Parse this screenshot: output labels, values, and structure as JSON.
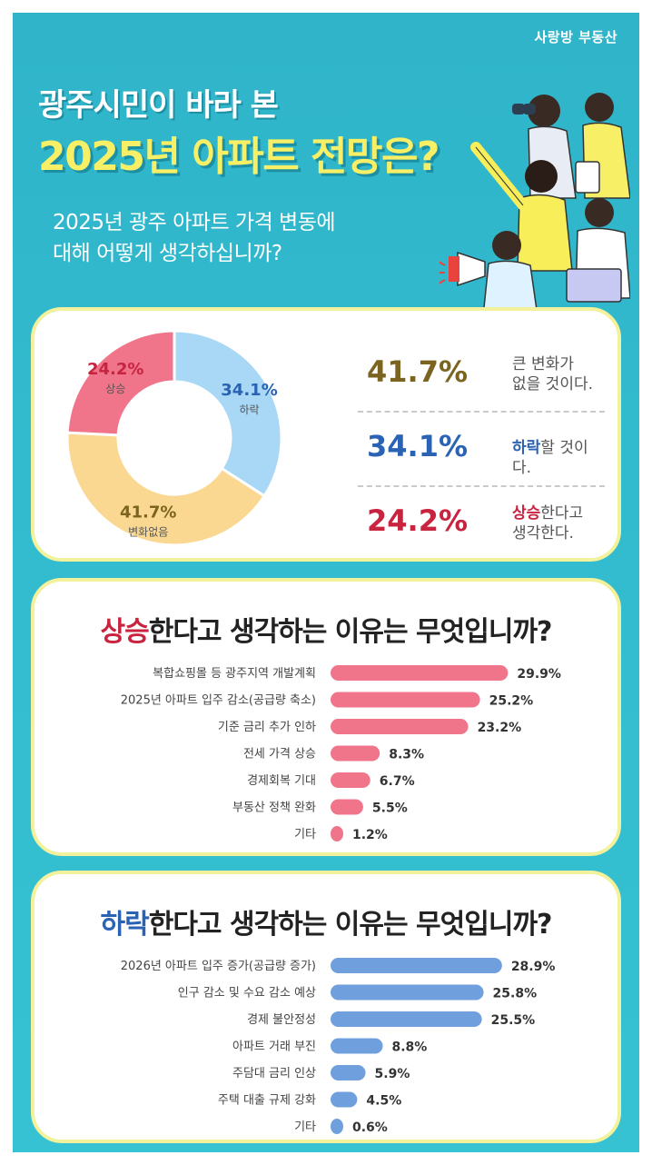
{
  "brand": "사랑방 부동산",
  "header": {
    "line1": "광주시민이 바라 본",
    "line2_yellow": "2025년 아파트 전망은?",
    "question_line1": "2025년 광주 아파트 가격 변동에",
    "question_line2": "대해 어떻게 생각하십니까?"
  },
  "colors": {
    "background": "#33bccf",
    "rise": "#f0758a",
    "fall": "#6fa0dd",
    "nochange": "#fbd891",
    "fall_slice": "#a9d8f7",
    "rise_text": "#c8233f",
    "fall_text": "#2a62b4",
    "nochange_text": "#7b6420"
  },
  "donut": {
    "slices": [
      {
        "name": "하락",
        "value": 34.1,
        "label": "34.1%",
        "color": "#a9d8f7",
        "text_color": "#2a62b4"
      },
      {
        "name": "변화없음",
        "value": 41.7,
        "label": "41.7%",
        "color": "#fbd891",
        "text_color": "#7b6420"
      },
      {
        "name": "상승",
        "value": 24.2,
        "label": "24.2%",
        "color": "#f0758a",
        "text_color": "#c8233f"
      }
    ]
  },
  "legend": [
    {
      "pct": "41.7%",
      "strong": "",
      "rest": "큰 변화가",
      "rest2": "없을 것이다."
    },
    {
      "pct": "34.1%",
      "strong": "하락",
      "rest": "할 것이다.",
      "rest2": ""
    },
    {
      "pct": "24.2%",
      "strong": "상승",
      "rest": "한다고",
      "rest2": "생각한다."
    }
  ],
  "rise_section": {
    "title_strong": "상승",
    "title_rest": "한다고 생각하는 이유는 무엇입니까?"
  },
  "fall_section": {
    "title_strong": "하락",
    "title_rest": "한다고 생각하는 이유는 무엇입니까?"
  },
  "chart_data": [
    {
      "type": "pie",
      "categories": [
        "하락",
        "변화없음",
        "상승"
      ],
      "values": [
        34.1,
        41.7,
        24.2
      ],
      "title": "2025년 광주 아파트 가격 변동에 대해 어떻게 생각하십니까?"
    },
    {
      "type": "bar",
      "orientation": "horizontal",
      "title": "상승한다고 생각하는 이유는 무엇입니까?",
      "categories": [
        "복합쇼핑몰 등 광주지역 개발계획",
        "2025년 아파트 입주 감소(공급량 축소)",
        "기준 금리 추가 인하",
        "전세 가격 상승",
        "경제회복 기대",
        "부동산 정책 완화",
        "기타"
      ],
      "values": [
        29.9,
        25.2,
        23.2,
        8.3,
        6.7,
        5.5,
        1.2
      ],
      "value_labels": [
        "29.9%",
        "25.2%",
        "23.2%",
        "8.3%",
        "6.7%",
        "5.5%",
        "1.2%"
      ],
      "color": "#f0758a"
    },
    {
      "type": "bar",
      "orientation": "horizontal",
      "title": "하락한다고 생각하는 이유는 무엇입니까?",
      "categories": [
        "2026년 아파트 입주 증가(공급량 증가)",
        "인구 감소 및 수요 감소 예상",
        "경제 불안정성",
        "아파트 거래 부진",
        "주담대 금리 인상",
        "주택 대출 규제 강화",
        "기타"
      ],
      "values": [
        28.9,
        25.8,
        25.5,
        8.8,
        5.9,
        4.5,
        0.6
      ],
      "value_labels": [
        "28.9%",
        "25.8%",
        "25.5%",
        "8.8%",
        "5.9%",
        "4.5%",
        "0.6%"
      ],
      "color": "#6fa0dd"
    }
  ]
}
